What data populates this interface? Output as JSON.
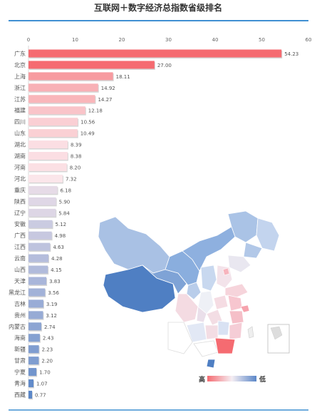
{
  "chart_data": {
    "type": "bar",
    "orientation": "horizontal",
    "title": "互联网＋数字经济总指数省级排名",
    "xlim": [
      0,
      60
    ],
    "xticks": [
      0,
      10,
      20,
      30,
      40,
      50,
      60
    ],
    "categories": [
      "广东",
      "北京",
      "上海",
      "浙江",
      "江苏",
      "福建",
      "四川",
      "山东",
      "湖北",
      "湖南",
      "河南",
      "河北",
      "重庆",
      "陕西",
      "辽宁",
      "安徽",
      "广西",
      "江西",
      "云南",
      "山西",
      "天津",
      "黑龙江",
      "吉林",
      "贵州",
      "内蒙古",
      "海南",
      "新疆",
      "甘肃",
      "宁夏",
      "青海",
      "西藏"
    ],
    "values": [
      54.23,
      27.0,
      18.11,
      14.92,
      14.27,
      12.18,
      10.56,
      10.49,
      8.39,
      8.38,
      8.2,
      7.32,
      6.18,
      5.9,
      5.84,
      5.12,
      4.98,
      4.63,
      4.28,
      4.15,
      3.83,
      3.56,
      3.19,
      3.12,
      2.74,
      2.43,
      2.23,
      2.2,
      1.7,
      1.07,
      0.77
    ],
    "value_labels": [
      "54.23",
      "27.00",
      "18.11",
      "14.92",
      "14.27",
      "12.18",
      "10.56",
      "10.49",
      "8.39",
      "8.38",
      "8.20",
      "7.32",
      "6.18",
      "5.90",
      "5.84",
      "5.12",
      "4.98",
      "4.63",
      "4.28",
      "4.15",
      "3.83",
      "3.56",
      "3.19",
      "3.12",
      "2.74",
      "2.43",
      "2.23",
      "2.20",
      "1.70",
      "1.07",
      "0.77"
    ],
    "color_scale": {
      "high": "#f56b71",
      "mid": "#fbe8ec",
      "low": "#5b87c8"
    },
    "legend": {
      "high_label": "高",
      "low_label": "低",
      "placement": "bottom-right"
    }
  },
  "colors": {
    "accent_line": "#3f8fd2",
    "axis": "#d9d9d9"
  }
}
